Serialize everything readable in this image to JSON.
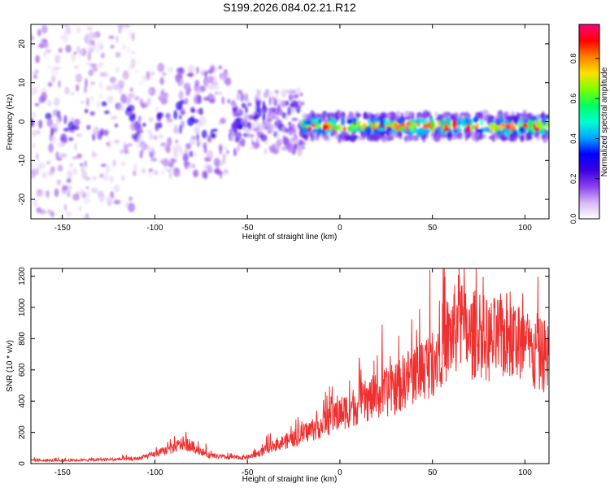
{
  "title": "S199.2026.084.02.21.R12",
  "chart_data": [
    {
      "type": "heatmap",
      "title": "S199.2026.084.02.21.R12",
      "xlabel": "Height of straight line (km)",
      "ylabel": "Frequency (Hz)",
      "xlim": [
        -167,
        113
      ],
      "ylim": [
        -25,
        25
      ],
      "xticks": [
        -150,
        -100,
        -50,
        0,
        50,
        100
      ],
      "yticks": [
        -20,
        -10,
        0,
        10,
        20
      ],
      "colorbar": {
        "label": "Normalized spectral amplitude",
        "range": [
          0,
          0.97
        ],
        "ticks": [
          0.0,
          0.2,
          0.4,
          0.6,
          0.8
        ],
        "colormap": [
          "#ffffff",
          "#d7b8f5",
          "#8a3ff0",
          "#3b00e0",
          "#0000ff",
          "#00a5ff",
          "#00ffd0",
          "#00ff60",
          "#7dff00",
          "#ffe000",
          "#ff8000",
          "#ff0000",
          "#ff0080"
        ]
      },
      "description_regions": [
        {
          "x_range": [
            -167,
            -20
          ],
          "freq_spread": [
            -25,
            25
          ],
          "amplitude": "low, scattered (0.0-0.3)"
        },
        {
          "x_range": [
            -20,
            113
          ],
          "freq_center": [
            -1.5,
            0
          ],
          "amplitude": "high narrow band (0.4-0.9)"
        }
      ]
    },
    {
      "type": "line",
      "xlabel": "Height of straight line (km)",
      "ylabel": "SNR (10 * v/v)",
      "xlim": [
        -167,
        113
      ],
      "ylim": [
        0,
        1250
      ],
      "xticks": [
        -150,
        -100,
        -50,
        0,
        50,
        100
      ],
      "yticks": [
        0,
        200,
        400,
        600,
        800,
        1000,
        1200
      ],
      "color": "#f03030",
      "x": [
        -167,
        -150,
        -130,
        -110,
        -100,
        -90,
        -85,
        -80,
        -75,
        -70,
        -60,
        -50,
        -45,
        -40,
        -35,
        -30,
        -25,
        -20,
        -10,
        0,
        10,
        20,
        30,
        40,
        50,
        55,
        60,
        65,
        70,
        75,
        80,
        90,
        100,
        105,
        110,
        113
      ],
      "values": [
        20,
        20,
        25,
        30,
        60,
        100,
        130,
        110,
        80,
        50,
        40,
        40,
        60,
        90,
        120,
        140,
        160,
        190,
        250,
        320,
        380,
        430,
        480,
        580,
        650,
        760,
        820,
        900,
        800,
        850,
        780,
        820,
        750,
        680,
        700,
        650
      ]
    }
  ]
}
